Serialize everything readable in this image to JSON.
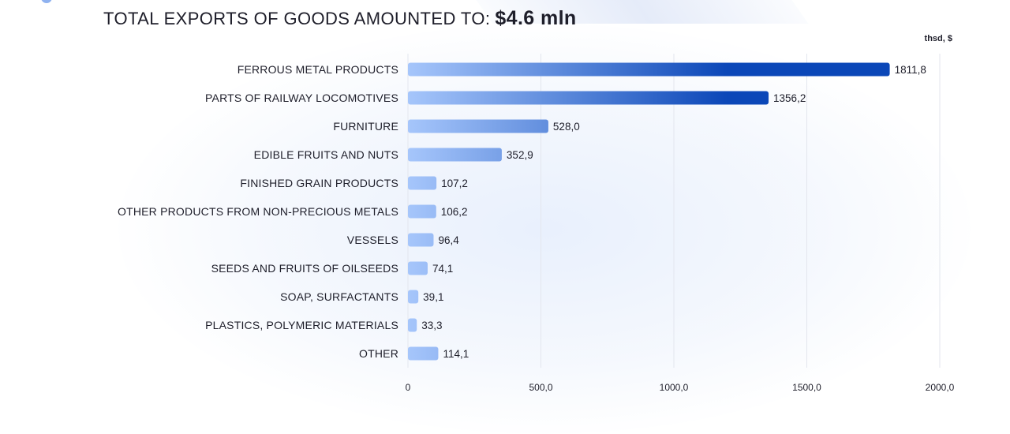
{
  "header": {
    "title_text": "TOTAL EXPORTS OF GOODS AMOUNTED TO:",
    "title_value": "$4.6 mln"
  },
  "colors": {
    "bar_light": "#a6c6fb",
    "bar_dark": "#0b47b8",
    "grid": "#e3e6ee",
    "text": "#1e1e2a"
  },
  "chart_data": {
    "type": "bar",
    "orientation": "horizontal",
    "unit_label": "thsd, $",
    "categories": [
      "FERROUS METAL PRODUCTS",
      "PARTS OF RAILWAY LOCOMOTIVES",
      "FURNITURE",
      "EDIBLE FRUITS AND NUTS",
      "FINISHED GRAIN PRODUCTS",
      "OTHER PRODUCTS FROM NON-PRECIOUS METALS",
      "VESSELS",
      "SEEDS AND FRUITS OF OILSEEDS",
      "SOAP, SURFACTANTS",
      "PLASTICS, POLYMERIC MATERIALS",
      "OTHER"
    ],
    "values": [
      1811.8,
      1356.2,
      528.0,
      352.9,
      107.2,
      106.2,
      96.4,
      74.1,
      39.1,
      33.3,
      114.1
    ],
    "value_labels": [
      "1811,8",
      "1356,2",
      "528,0",
      "352,9",
      "107,2",
      "106,2",
      "96,4",
      "74,1",
      "39,1",
      "33,3",
      "114,1"
    ],
    "xlim": [
      0,
      2000
    ],
    "xticks": [
      0,
      500,
      1000,
      1500,
      2000
    ],
    "xtick_labels": [
      "0",
      "500,0",
      "1000,0",
      "1500,0",
      "2000,0"
    ],
    "grid": true,
    "legend": "none"
  }
}
